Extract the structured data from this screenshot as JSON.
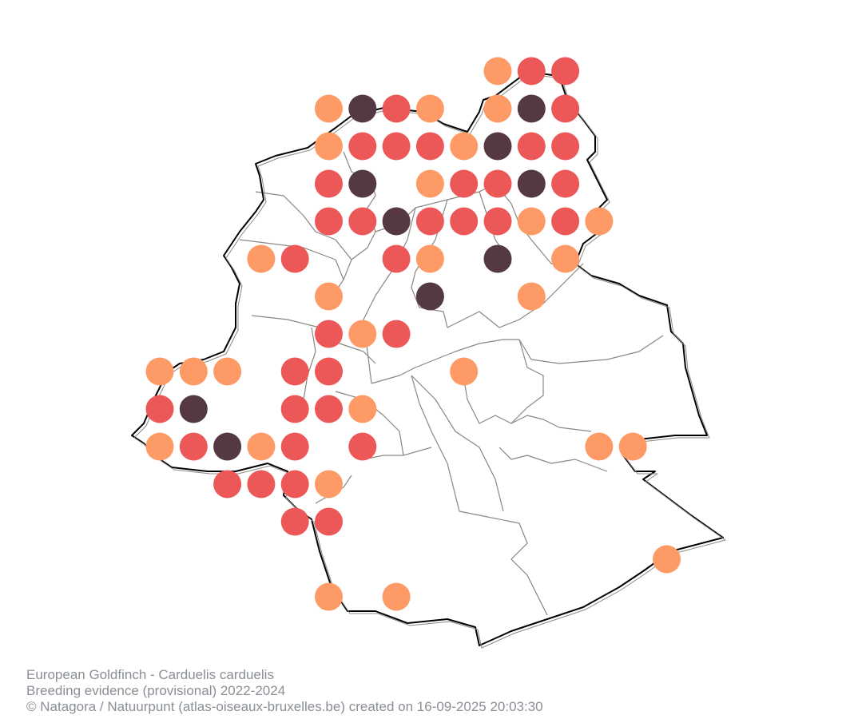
{
  "caption": {
    "species": "European Goldfinch - Carduelis carduelis",
    "subtitle": "Breeding evidence (provisional) 2022-2024",
    "credit": "© Natagora / Natuurpunt (atlas-oiseaux-bruxelles.be) created on 16-09-2025 20:03:30"
  },
  "map": {
    "region": "Brussels-Capital Region",
    "boundary_color": "#000000",
    "municipality_line_color": "#8c8681"
  },
  "legend_colors": {
    "possible": "#fd9a65",
    "probable": "#ec5757",
    "confirmed": "#543944"
  },
  "grid_cells": [
    {
      "col": 10,
      "row": 0,
      "level": "possible"
    },
    {
      "col": 11,
      "row": 0,
      "level": "probable"
    },
    {
      "col": 12,
      "row": 0,
      "level": "probable"
    },
    {
      "col": 5,
      "row": 1,
      "level": "possible"
    },
    {
      "col": 6,
      "row": 1,
      "level": "confirmed"
    },
    {
      "col": 7,
      "row": 1,
      "level": "probable"
    },
    {
      "col": 8,
      "row": 1,
      "level": "possible"
    },
    {
      "col": 10,
      "row": 1,
      "level": "possible"
    },
    {
      "col": 11,
      "row": 1,
      "level": "confirmed"
    },
    {
      "col": 12,
      "row": 1,
      "level": "probable"
    },
    {
      "col": 5,
      "row": 2,
      "level": "possible"
    },
    {
      "col": 6,
      "row": 2,
      "level": "probable"
    },
    {
      "col": 7,
      "row": 2,
      "level": "probable"
    },
    {
      "col": 8,
      "row": 2,
      "level": "probable"
    },
    {
      "col": 9,
      "row": 2,
      "level": "possible"
    },
    {
      "col": 10,
      "row": 2,
      "level": "confirmed"
    },
    {
      "col": 11,
      "row": 2,
      "level": "probable"
    },
    {
      "col": 12,
      "row": 2,
      "level": "probable"
    },
    {
      "col": 5,
      "row": 3,
      "level": "probable"
    },
    {
      "col": 6,
      "row": 3,
      "level": "confirmed"
    },
    {
      "col": 8,
      "row": 3,
      "level": "possible"
    },
    {
      "col": 9,
      "row": 3,
      "level": "probable"
    },
    {
      "col": 10,
      "row": 3,
      "level": "probable"
    },
    {
      "col": 11,
      "row": 3,
      "level": "confirmed"
    },
    {
      "col": 12,
      "row": 3,
      "level": "probable"
    },
    {
      "col": 5,
      "row": 4,
      "level": "probable"
    },
    {
      "col": 6,
      "row": 4,
      "level": "probable"
    },
    {
      "col": 7,
      "row": 4,
      "level": "confirmed"
    },
    {
      "col": 8,
      "row": 4,
      "level": "probable"
    },
    {
      "col": 9,
      "row": 4,
      "level": "probable"
    },
    {
      "col": 10,
      "row": 4,
      "level": "probable"
    },
    {
      "col": 11,
      "row": 4,
      "level": "possible"
    },
    {
      "col": 12,
      "row": 4,
      "level": "probable"
    },
    {
      "col": 13,
      "row": 4,
      "level": "possible"
    },
    {
      "col": 3,
      "row": 5,
      "level": "possible"
    },
    {
      "col": 4,
      "row": 5,
      "level": "probable"
    },
    {
      "col": 7,
      "row": 5,
      "level": "probable"
    },
    {
      "col": 8,
      "row": 5,
      "level": "possible"
    },
    {
      "col": 10,
      "row": 5,
      "level": "confirmed"
    },
    {
      "col": 12,
      "row": 5,
      "level": "possible"
    },
    {
      "col": 5,
      "row": 6,
      "level": "possible"
    },
    {
      "col": 8,
      "row": 6,
      "level": "confirmed"
    },
    {
      "col": 11,
      "row": 6,
      "level": "possible"
    },
    {
      "col": 5,
      "row": 7,
      "level": "probable"
    },
    {
      "col": 6,
      "row": 7,
      "level": "possible"
    },
    {
      "col": 7,
      "row": 7,
      "level": "probable"
    },
    {
      "col": 0,
      "row": 8,
      "level": "possible"
    },
    {
      "col": 1,
      "row": 8,
      "level": "possible"
    },
    {
      "col": 2,
      "row": 8,
      "level": "possible"
    },
    {
      "col": 4,
      "row": 8,
      "level": "probable"
    },
    {
      "col": 5,
      "row": 8,
      "level": "probable"
    },
    {
      "col": 9,
      "row": 8,
      "level": "possible"
    },
    {
      "col": 0,
      "row": 9,
      "level": "probable"
    },
    {
      "col": 1,
      "row": 9,
      "level": "confirmed"
    },
    {
      "col": 4,
      "row": 9,
      "level": "probable"
    },
    {
      "col": 5,
      "row": 9,
      "level": "probable"
    },
    {
      "col": 6,
      "row": 9,
      "level": "possible"
    },
    {
      "col": 0,
      "row": 10,
      "level": "possible"
    },
    {
      "col": 1,
      "row": 10,
      "level": "probable"
    },
    {
      "col": 2,
      "row": 10,
      "level": "confirmed"
    },
    {
      "col": 3,
      "row": 10,
      "level": "possible"
    },
    {
      "col": 4,
      "row": 10,
      "level": "probable"
    },
    {
      "col": 6,
      "row": 10,
      "level": "probable"
    },
    {
      "col": 13,
      "row": 10,
      "level": "possible"
    },
    {
      "col": 14,
      "row": 10,
      "level": "possible"
    },
    {
      "col": 2,
      "row": 11,
      "level": "probable"
    },
    {
      "col": 3,
      "row": 11,
      "level": "probable"
    },
    {
      "col": 4,
      "row": 11,
      "level": "probable"
    },
    {
      "col": 5,
      "row": 11,
      "level": "possible"
    },
    {
      "col": 4,
      "row": 12,
      "level": "probable"
    },
    {
      "col": 5,
      "row": 12,
      "level": "probable"
    },
    {
      "col": 15,
      "row": 13,
      "level": "possible"
    },
    {
      "col": 5,
      "row": 14,
      "level": "possible"
    },
    {
      "col": 7,
      "row": 14,
      "level": "possible"
    }
  ]
}
